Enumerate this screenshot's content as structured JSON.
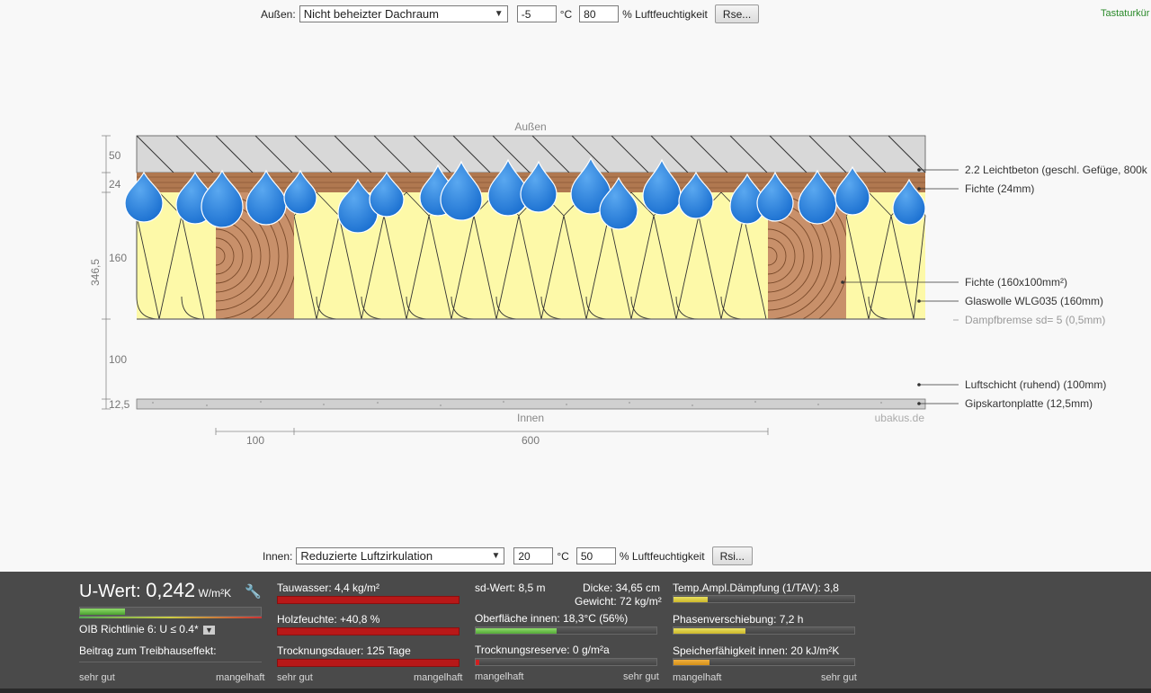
{
  "outside": {
    "label": "Außen:",
    "select_value": "Nicht beheizter Dachraum",
    "temp": "-5",
    "temp_unit": "°C",
    "humidity": "80",
    "humidity_unit": "% Luftfeuchtigkeit",
    "button": "Rse..."
  },
  "keyboard_link": "Tastaturkür",
  "inside": {
    "label": "Innen:",
    "select_value": "Reduzierte Luftzirkulation",
    "temp": "20",
    "temp_unit": "°C",
    "humidity": "50",
    "humidity_unit": "% Luftfeuchtigkeit",
    "button": "Rsi..."
  },
  "diagram": {
    "top_label": "Außen",
    "bottom_label": "Innen",
    "watermark": "ubakus.de",
    "dim_labels": [
      "50",
      "24",
      "160",
      "100",
      "12,5"
    ],
    "total_dim": "346,5",
    "width_labels": [
      "100",
      "600"
    ],
    "layers": [
      {
        "label": "2.2 Leichtbeton (geschl. Gefüge,  800k",
        "color": "#d8d8d8"
      },
      {
        "label": "Fichte (24mm)",
        "color": "#b07850"
      },
      {
        "label": "Fichte (160x100mm²)",
        "color": "#c8906a"
      },
      {
        "label": "Glaswolle WLG035 (160mm)",
        "color": "#fdf9a8"
      },
      {
        "label": "Dampfbremse sd= 5 (0,5mm)",
        "color": "#888888"
      },
      {
        "label": "Luftschicht (ruhend) (100mm)",
        "color": "#f8f8f8"
      },
      {
        "label": "Gipskartonplatte (12,5mm)",
        "color": "#cccccc"
      }
    ]
  },
  "results": {
    "uwert": {
      "prefix": "U-Wert: ",
      "value": "0,242",
      "unit": " W/m²K",
      "rating_fraction": 0.25,
      "oib": "OIB Richtlinie 6: U ≤ 0.4*",
      "beitrag": "Beitrag zum Treibhauseffekt:",
      "scale_left": "sehr gut",
      "scale_right": "mangelhaft"
    },
    "col2": {
      "tauwasser": "Tauwasser: 4,4 kg/m²",
      "holzfeuchte": "Holzfeuchte: +40,8 %",
      "trocknungsdauer": "Trocknungsdauer: 125 Tage",
      "scale_left": "sehr gut",
      "scale_right": "mangelhaft"
    },
    "col3": {
      "sdwert": "sd-Wert: 8,5 m",
      "dicke": "Dicke: 34,65 cm",
      "gewicht": "Gewicht: 72 kg/m²",
      "oberflaeche": "Oberfläche innen: 18,3°C (56%)",
      "oberflaeche_fraction": 0.45,
      "reserve": "Trocknungsreserve: 0 g/m²a",
      "reserve_fraction": 0.02,
      "scale_left": "mangelhaft",
      "scale_right": "sehr gut"
    },
    "col4": {
      "temp_ampl": "Temp.Ampl.Dämpfung (1/TAV): 3,8",
      "temp_ampl_fraction": 0.19,
      "phasen": "Phasenverschiebung: 7,2 h",
      "phasen_fraction": 0.4,
      "speicher": "Speicherfähigkeit innen: 20 kJ/m²K",
      "speicher_fraction": 0.2,
      "scale_left": "mangelhaft",
      "scale_right": "sehr gut"
    }
  }
}
